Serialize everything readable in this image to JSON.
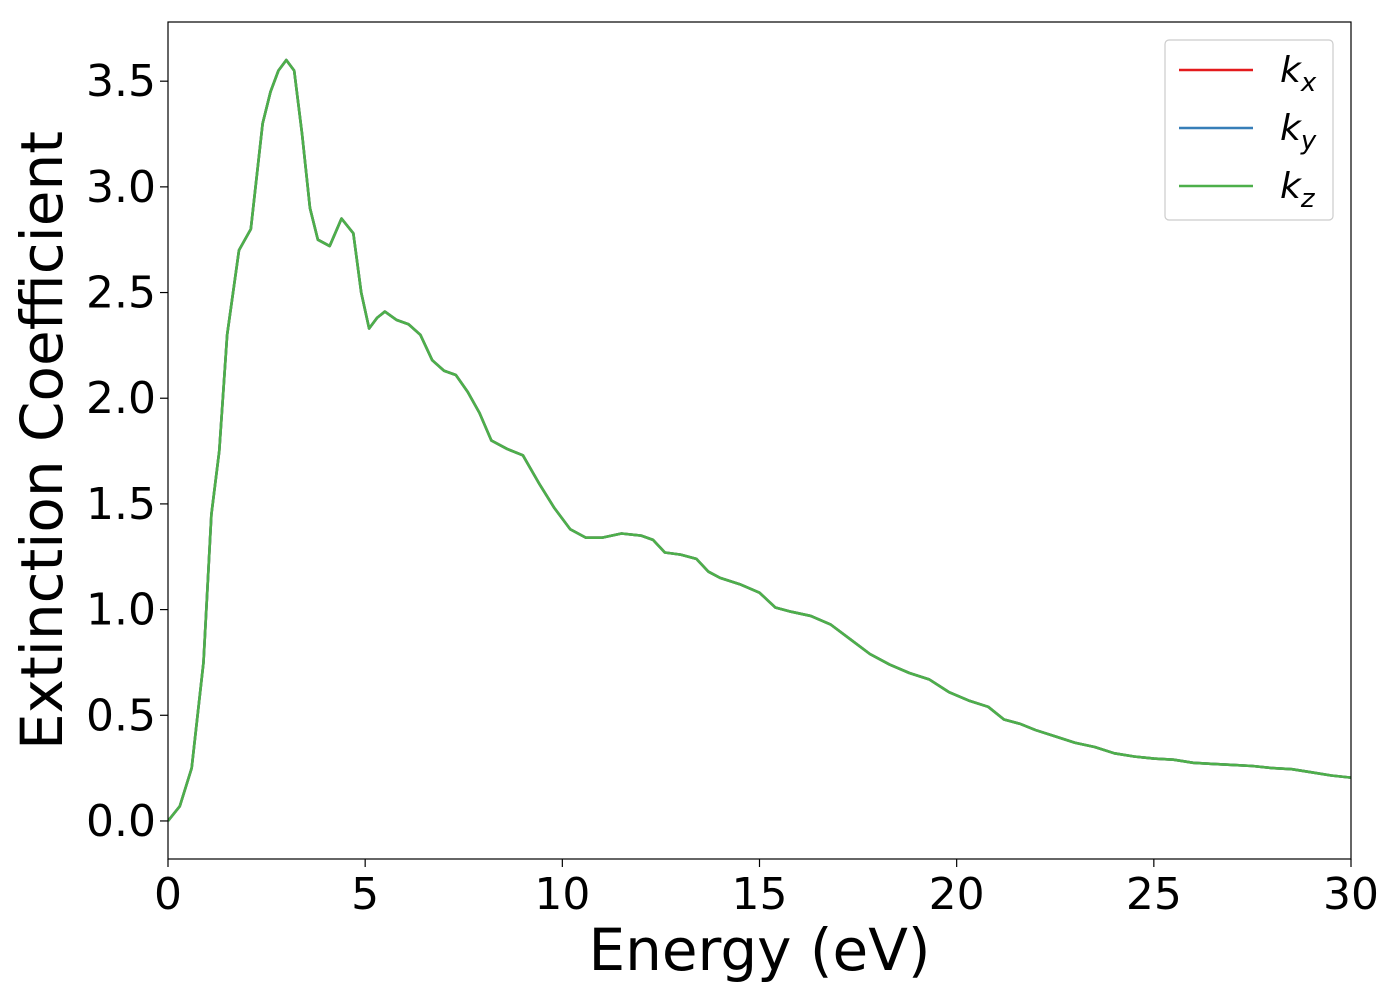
{
  "chart_data": {
    "type": "line",
    "title": "",
    "xlabel": "Energy (eV)",
    "ylabel": "Extinction Coefficient",
    "xlim": [
      0,
      30
    ],
    "ylim": [
      -0.18,
      3.78
    ],
    "xticks": [
      0,
      5,
      10,
      15,
      20,
      25,
      30
    ],
    "xtick_labels": [
      "0",
      "5",
      "10",
      "15",
      "20",
      "25",
      "30"
    ],
    "yticks": [
      0.0,
      0.5,
      1.0,
      1.5,
      2.0,
      2.5,
      3.0,
      3.5
    ],
    "ytick_labels": [
      "0.0",
      "0.5",
      "1.0",
      "1.5",
      "2.0",
      "2.5",
      "3.0",
      "3.5"
    ],
    "grid": false,
    "legend_position": "top-right",
    "x": [
      0,
      0.3,
      0.6,
      0.9,
      1.1,
      1.3,
      1.5,
      1.8,
      2.1,
      2.4,
      2.6,
      2.8,
      3.0,
      3.2,
      3.4,
      3.6,
      3.8,
      4.1,
      4.4,
      4.7,
      4.9,
      5.1,
      5.3,
      5.5,
      5.8,
      6.1,
      6.4,
      6.7,
      7.0,
      7.3,
      7.6,
      7.9,
      8.2,
      8.6,
      9.0,
      9.4,
      9.8,
      10.2,
      10.6,
      11.0,
      11.5,
      12.0,
      12.3,
      12.6,
      13.0,
      13.4,
      13.7,
      14.0,
      14.5,
      15.0,
      15.4,
      15.8,
      16.3,
      16.8,
      17.3,
      17.8,
      18.3,
      18.8,
      19.3,
      19.8,
      20.3,
      20.8,
      21.2,
      21.6,
      22.0,
      22.5,
      23.0,
      23.5,
      24.0,
      24.5,
      25.0,
      25.5,
      26.0,
      26.5,
      27.0,
      27.5,
      28.0,
      28.5,
      29.0,
      29.5,
      30.0
    ],
    "series": [
      {
        "name": "k",
        "subscript": "x",
        "color": "#e41a1c",
        "values": [
          0.0,
          0.07,
          0.25,
          0.75,
          1.45,
          1.75,
          2.3,
          2.7,
          2.8,
          3.3,
          3.45,
          3.55,
          3.6,
          3.55,
          3.25,
          2.9,
          2.75,
          2.72,
          2.85,
          2.78,
          2.5,
          2.33,
          2.38,
          2.41,
          2.37,
          2.35,
          2.3,
          2.18,
          2.13,
          2.11,
          2.03,
          1.93,
          1.8,
          1.76,
          1.73,
          1.6,
          1.48,
          1.38,
          1.34,
          1.34,
          1.36,
          1.35,
          1.33,
          1.27,
          1.26,
          1.24,
          1.18,
          1.15,
          1.12,
          1.08,
          1.01,
          0.99,
          0.97,
          0.93,
          0.86,
          0.79,
          0.74,
          0.7,
          0.67,
          0.61,
          0.57,
          0.54,
          0.48,
          0.46,
          0.43,
          0.4,
          0.37,
          0.35,
          0.32,
          0.305,
          0.295,
          0.29,
          0.275,
          0.27,
          0.265,
          0.26,
          0.25,
          0.245,
          0.23,
          0.215,
          0.205
        ]
      },
      {
        "name": "k",
        "subscript": "y",
        "color": "#377eb8",
        "values": [
          0.0,
          0.07,
          0.25,
          0.75,
          1.45,
          1.75,
          2.3,
          2.7,
          2.8,
          3.3,
          3.45,
          3.55,
          3.6,
          3.55,
          3.25,
          2.9,
          2.75,
          2.72,
          2.85,
          2.78,
          2.5,
          2.33,
          2.38,
          2.41,
          2.37,
          2.35,
          2.3,
          2.18,
          2.13,
          2.11,
          2.03,
          1.93,
          1.8,
          1.76,
          1.73,
          1.6,
          1.48,
          1.38,
          1.34,
          1.34,
          1.36,
          1.35,
          1.33,
          1.27,
          1.26,
          1.24,
          1.18,
          1.15,
          1.12,
          1.08,
          1.01,
          0.99,
          0.97,
          0.93,
          0.86,
          0.79,
          0.74,
          0.7,
          0.67,
          0.61,
          0.57,
          0.54,
          0.48,
          0.46,
          0.43,
          0.4,
          0.37,
          0.35,
          0.32,
          0.305,
          0.295,
          0.29,
          0.275,
          0.27,
          0.265,
          0.26,
          0.25,
          0.245,
          0.23,
          0.215,
          0.205
        ]
      },
      {
        "name": "k",
        "subscript": "z",
        "color": "#4daf4a",
        "values": [
          0.0,
          0.07,
          0.25,
          0.75,
          1.45,
          1.75,
          2.3,
          2.7,
          2.8,
          3.3,
          3.45,
          3.55,
          3.6,
          3.55,
          3.25,
          2.9,
          2.75,
          2.72,
          2.85,
          2.78,
          2.5,
          2.33,
          2.38,
          2.41,
          2.37,
          2.35,
          2.3,
          2.18,
          2.13,
          2.11,
          2.03,
          1.93,
          1.8,
          1.76,
          1.73,
          1.6,
          1.48,
          1.38,
          1.34,
          1.34,
          1.36,
          1.35,
          1.33,
          1.27,
          1.26,
          1.24,
          1.18,
          1.15,
          1.12,
          1.08,
          1.01,
          0.99,
          0.97,
          0.93,
          0.86,
          0.79,
          0.74,
          0.7,
          0.67,
          0.61,
          0.57,
          0.54,
          0.48,
          0.46,
          0.43,
          0.4,
          0.37,
          0.35,
          0.32,
          0.305,
          0.295,
          0.29,
          0.275,
          0.27,
          0.265,
          0.26,
          0.25,
          0.245,
          0.23,
          0.215,
          0.205
        ]
      }
    ]
  }
}
